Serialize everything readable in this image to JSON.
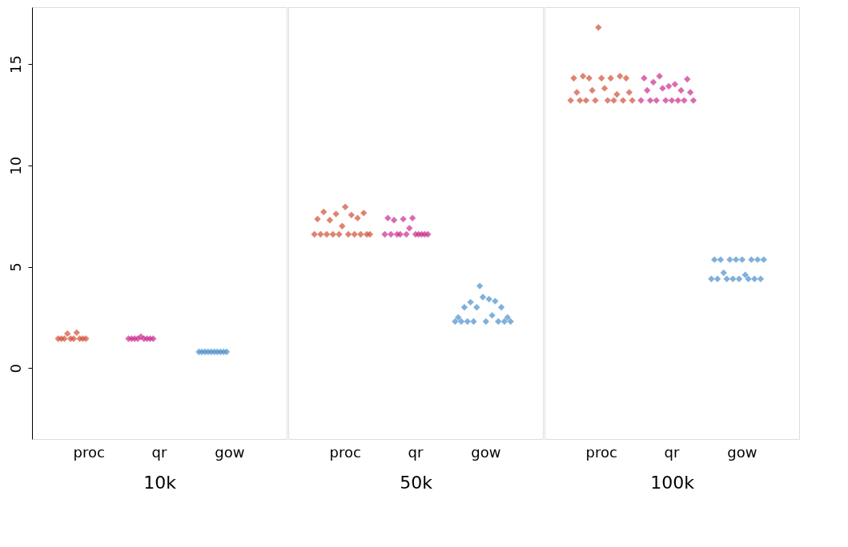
{
  "chart_data": [
    {
      "type": "scatter",
      "xlabel": "10k",
      "categories": [
        "proc",
        "qr",
        "gow"
      ],
      "ylim": [
        -3.5,
        17.8
      ],
      "yticks": [
        0,
        5,
        10,
        15
      ],
      "grid": false,
      "marker": "diamond",
      "series": [
        {
          "color": "#d24e36",
          "x": [
            "proc",
            "proc",
            "proc",
            "proc",
            "proc",
            "proc",
            "proc",
            "proc",
            "proc",
            "proc"
          ],
          "values": [
            1.45,
            1.45,
            1.45,
            1.7,
            1.45,
            1.45,
            1.75,
            1.45,
            1.45,
            1.45
          ]
        },
        {
          "color": "#cc2b8e",
          "x": [
            "qr",
            "qr",
            "qr",
            "qr",
            "qr",
            "qr",
            "qr",
            "qr",
            "qr"
          ],
          "values": [
            1.45,
            1.45,
            1.45,
            1.45,
            1.55,
            1.45,
            1.45,
            1.45,
            1.45
          ]
        },
        {
          "color": "#4a90cc",
          "x": [
            "gow",
            "gow",
            "gow",
            "gow",
            "gow",
            "gow",
            "gow",
            "gow",
            "gow",
            "gow"
          ],
          "values": [
            0.8,
            0.8,
            0.8,
            0.8,
            0.8,
            0.8,
            0.8,
            0.8,
            0.8,
            0.8
          ]
        }
      ]
    },
    {
      "type": "scatter",
      "xlabel": "50k",
      "categories": [
        "proc",
        "qr",
        "gow"
      ],
      "ylim": [
        -3.5,
        17.8
      ],
      "yticks": [
        0,
        5,
        10,
        15
      ],
      "tick_labels": "x",
      "grid": false,
      "marker": "diamond",
      "series": [
        {
          "color": "#d24e36",
          "x": [
            "proc",
            "proc",
            "proc",
            "proc",
            "proc",
            "proc",
            "proc",
            "proc",
            "proc",
            "proc",
            "proc",
            "proc",
            "proc",
            "proc",
            "proc",
            "proc",
            "proc",
            "proc",
            "proc"
          ],
          "values": [
            6.6,
            7.35,
            6.6,
            7.7,
            6.6,
            7.3,
            6.6,
            7.6,
            6.6,
            7.0,
            7.95,
            6.6,
            7.55,
            6.6,
            7.4,
            6.6,
            7.65,
            6.6,
            6.6
          ]
        },
        {
          "color": "#cc2b8e",
          "x": [
            "qr",
            "qr",
            "qr",
            "qr",
            "qr",
            "qr",
            "qr",
            "qr",
            "qr",
            "qr",
            "qr",
            "qr",
            "qr",
            "qr",
            "qr"
          ],
          "values": [
            6.6,
            7.4,
            6.6,
            7.3,
            6.6,
            6.6,
            7.35,
            6.6,
            6.9,
            7.4,
            6.6,
            6.6,
            6.6,
            6.6,
            6.6
          ]
        },
        {
          "color": "#4a90cc",
          "x": [
            "gow",
            "gow",
            "gow",
            "gow",
            "gow",
            "gow",
            "gow",
            "gow",
            "gow",
            "gow",
            "gow",
            "gow",
            "gow",
            "gow",
            "gow",
            "gow",
            "gow",
            "gow",
            "gow"
          ],
          "values": [
            2.3,
            2.5,
            2.3,
            3.0,
            2.3,
            3.25,
            2.3,
            3.0,
            4.05,
            3.5,
            2.3,
            3.4,
            2.6,
            3.3,
            2.3,
            3.0,
            2.3,
            2.5,
            2.3
          ]
        }
      ]
    },
    {
      "type": "scatter",
      "xlabel": "100k",
      "categories": [
        "proc",
        "qr",
        "gow"
      ],
      "ylim": [
        -3.5,
        17.8
      ],
      "yticks": [
        0,
        5,
        10,
        15
      ],
      "tick_labels": "x",
      "grid": false,
      "marker": "diamond",
      "series": [
        {
          "color": "#d24e36",
          "x": [
            "proc",
            "proc",
            "proc",
            "proc",
            "proc",
            "proc",
            "proc",
            "proc",
            "proc",
            "proc",
            "proc",
            "proc",
            "proc",
            "proc",
            "proc",
            "proc",
            "proc",
            "proc",
            "proc",
            "proc",
            "proc"
          ],
          "values": [
            13.2,
            14.3,
            13.6,
            13.2,
            14.4,
            13.2,
            14.3,
            13.7,
            13.2,
            16.8,
            14.3,
            13.8,
            13.2,
            14.3,
            13.2,
            13.5,
            14.4,
            13.2,
            14.3,
            13.6,
            13.2
          ]
        },
        {
          "color": "#cc2b8e",
          "x": [
            "qr",
            "qr",
            "qr",
            "qr",
            "qr",
            "qr",
            "qr",
            "qr",
            "qr",
            "qr",
            "qr",
            "qr",
            "qr",
            "qr",
            "qr",
            "qr",
            "qr",
            "qr"
          ],
          "values": [
            13.2,
            14.3,
            13.7,
            13.2,
            14.1,
            13.2,
            14.4,
            13.8,
            13.2,
            13.9,
            13.2,
            14.0,
            13.2,
            13.7,
            13.2,
            14.25,
            13.6,
            13.2
          ]
        },
        {
          "color": "#4a90cc",
          "x": [
            "gow",
            "gow",
            "gow",
            "gow",
            "gow",
            "gow",
            "gow",
            "gow",
            "gow",
            "gow",
            "gow",
            "gow",
            "gow",
            "gow",
            "gow",
            "gow",
            "gow",
            "gow"
          ],
          "values": [
            4.4,
            5.35,
            4.4,
            5.35,
            4.7,
            4.4,
            5.35,
            4.4,
            5.35,
            4.4,
            5.35,
            4.6,
            4.4,
            5.35,
            4.4,
            5.35,
            4.4,
            5.35
          ]
        }
      ]
    }
  ]
}
